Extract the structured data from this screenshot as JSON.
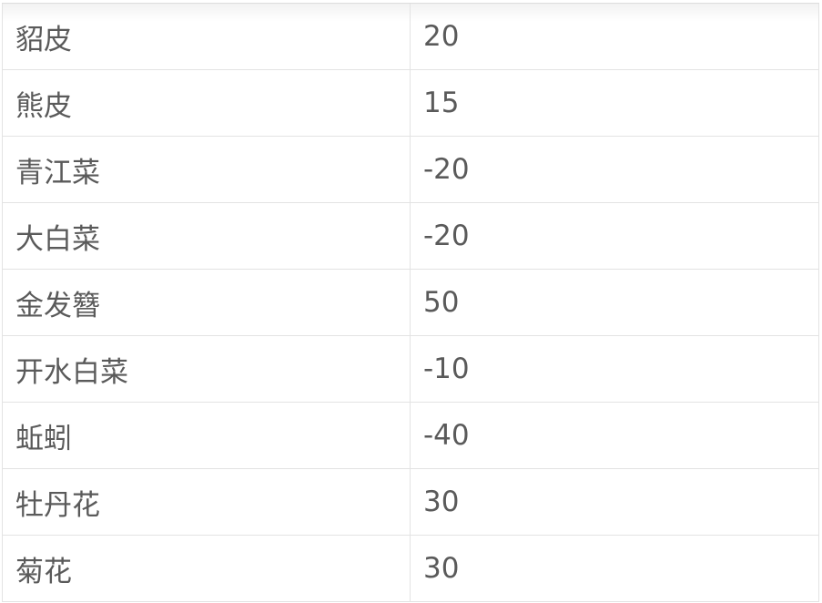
{
  "table": {
    "rows": [
      {
        "name": "貂皮",
        "value": "20"
      },
      {
        "name": "熊皮",
        "value": "15"
      },
      {
        "name": "青江菜",
        "value": "-20"
      },
      {
        "name": "大白菜",
        "value": "-20"
      },
      {
        "name": "金发簪",
        "value": "50"
      },
      {
        "name": "开水白菜",
        "value": "-10"
      },
      {
        "name": "蚯蚓",
        "value": "-40"
      },
      {
        "name": "牡丹花",
        "value": "30"
      },
      {
        "name": "菊花",
        "value": "30"
      }
    ]
  }
}
